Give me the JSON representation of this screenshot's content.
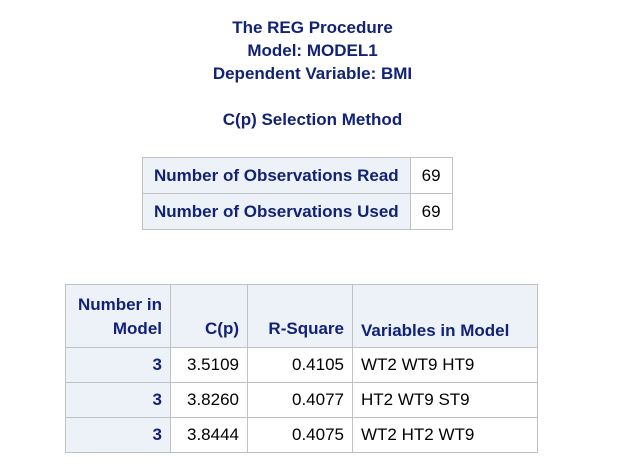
{
  "titles": {
    "line1": "The REG Procedure",
    "line2": "Model: MODEL1",
    "line3": "Dependent Variable: BMI",
    "subtitle": "C(p) Selection Method"
  },
  "observations": {
    "rows": [
      {
        "label": "Number of Observations Read",
        "value": "69"
      },
      {
        "label": "Number of Observations Used",
        "value": "69"
      }
    ]
  },
  "selection": {
    "headers": {
      "number_line1": "Number in",
      "number_line2": "Model",
      "cp": "C(p)",
      "rsquare": "R-Square",
      "variables": "Variables in Model"
    },
    "rows": [
      {
        "number": "3",
        "cp": "3.5109",
        "rsquare": "0.4105",
        "variables": "WT2 WT9 HT9"
      },
      {
        "number": "3",
        "cp": "3.8260",
        "rsquare": "0.4077",
        "variables": "HT2 WT9 ST9"
      },
      {
        "number": "3",
        "cp": "3.8444",
        "rsquare": "0.4075",
        "variables": "WT2 HT2 WT9"
      }
    ]
  }
}
